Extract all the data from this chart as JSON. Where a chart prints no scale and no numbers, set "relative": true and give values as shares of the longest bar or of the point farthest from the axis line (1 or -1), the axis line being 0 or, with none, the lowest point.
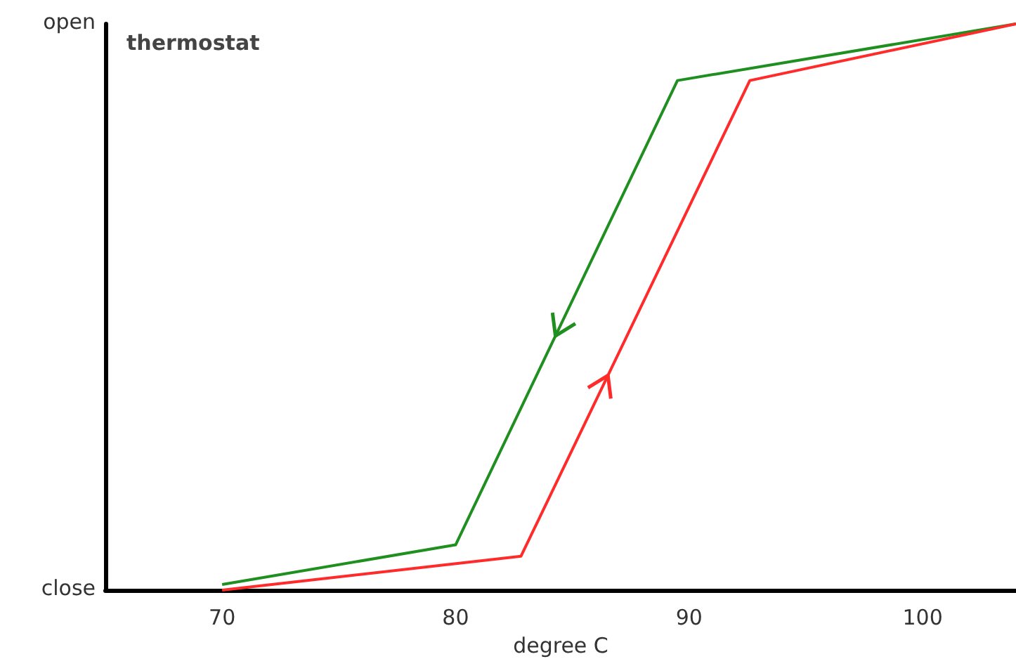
{
  "chart_data": {
    "type": "line",
    "title": "thermostat",
    "xlabel": "degree C",
    "xlim": [
      65,
      104
    ],
    "xticks": [
      70,
      80,
      90,
      100
    ],
    "relative": true,
    "annotations": [
      "open",
      "close"
    ],
    "grid": false,
    "marker": "none",
    "line_style": "solid",
    "series": [
      {
        "color": "#1f8f1f",
        "x": [
          70,
          80,
          89.5,
          104
        ],
        "values": [
          0.01,
          0.08,
          0.9,
          1
        ]
      },
      {
        "color": "#ff2a2a",
        "x": [
          70,
          82.8,
          92.6,
          104
        ],
        "values": [
          0,
          0.06,
          0.9,
          1
        ]
      }
    ]
  }
}
